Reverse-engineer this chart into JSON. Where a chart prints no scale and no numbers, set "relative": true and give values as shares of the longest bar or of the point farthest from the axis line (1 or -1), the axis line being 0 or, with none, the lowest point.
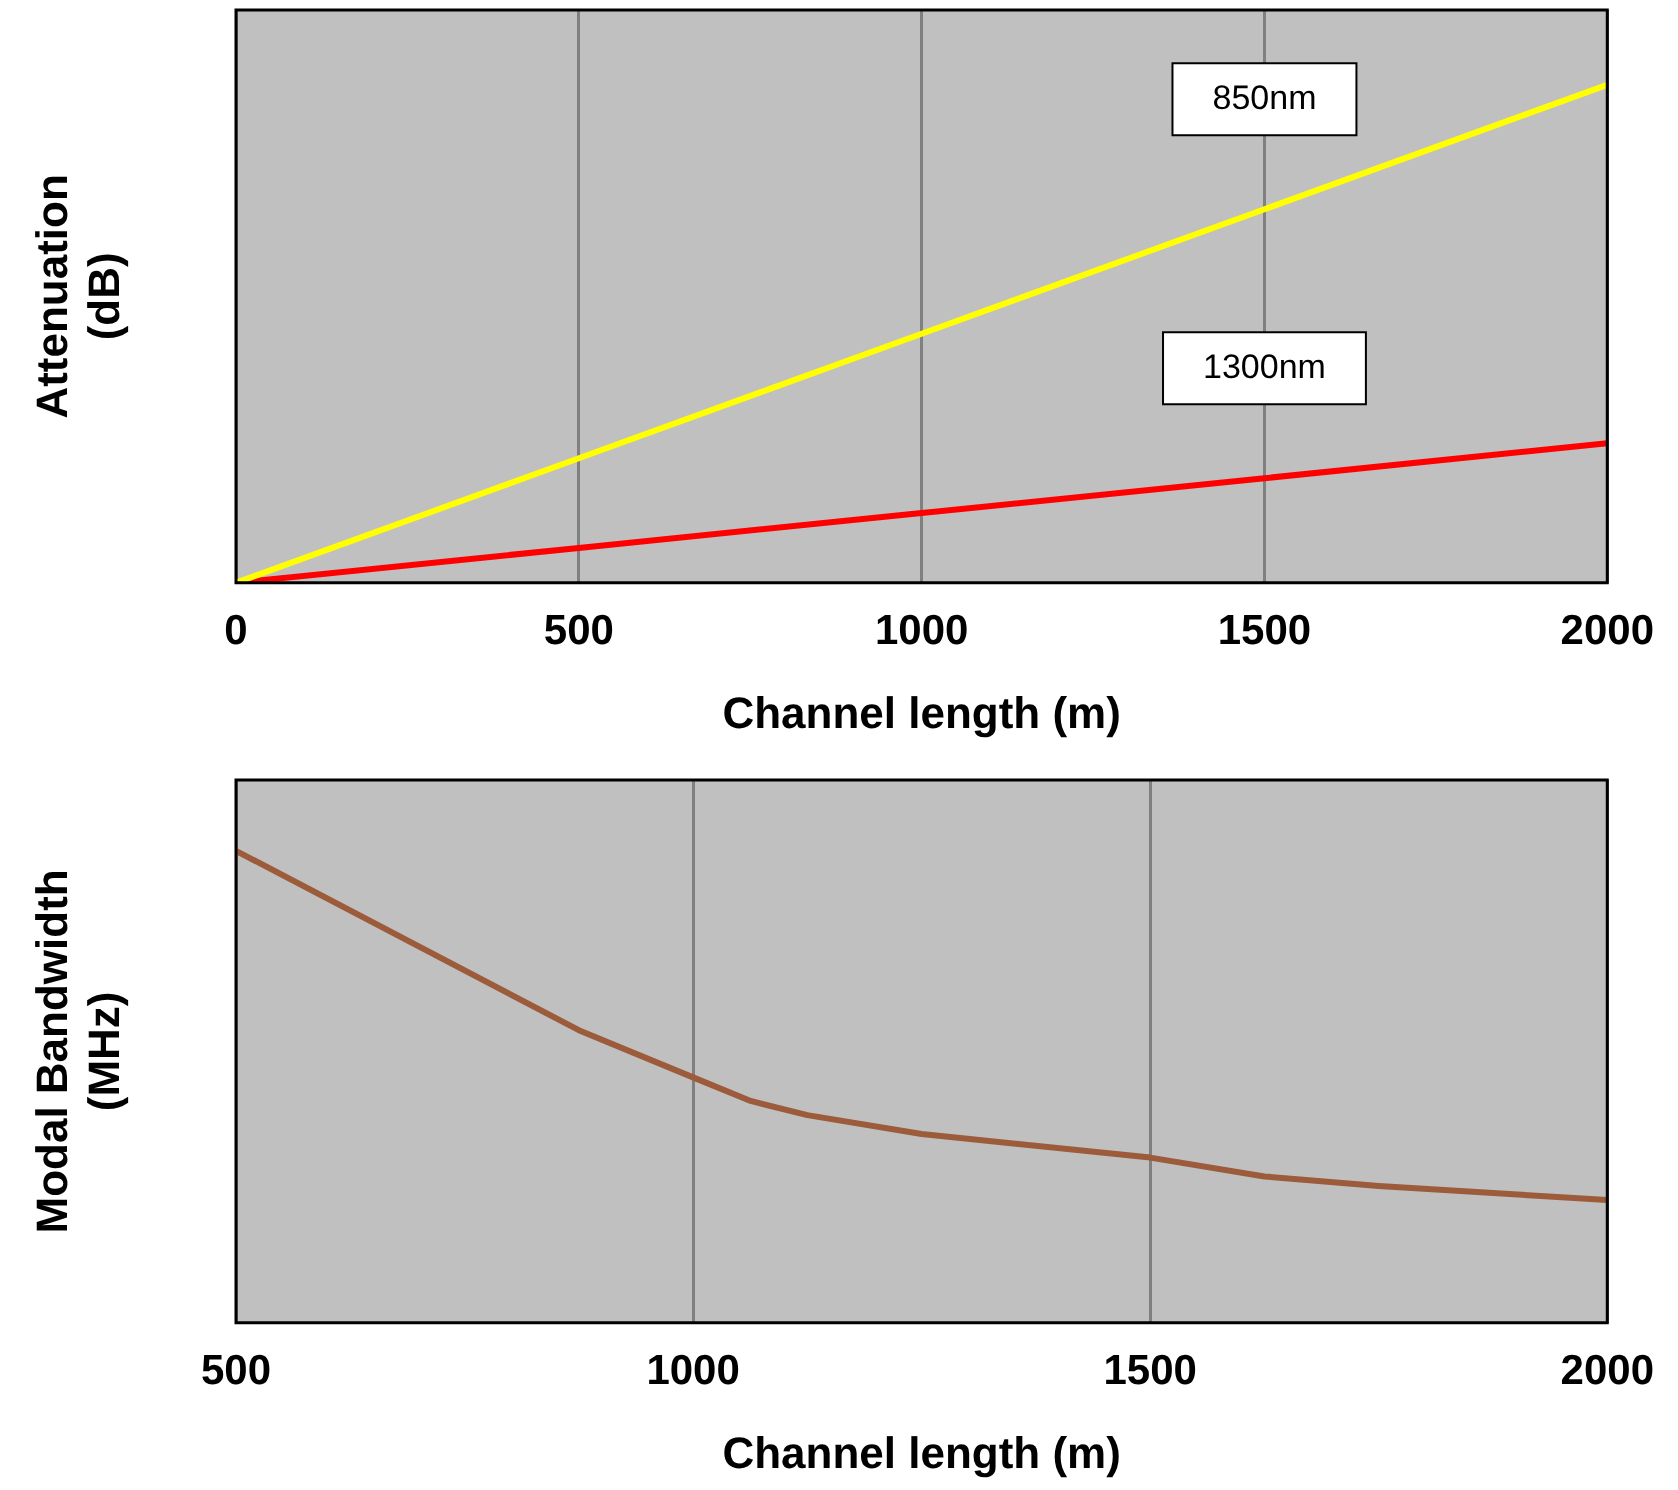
{
  "chart_data": [
    {
      "type": "line",
      "relative": true,
      "xlabel": "Channel length (m)",
      "ylabel": "Attenuation (dB)",
      "x": [
        0,
        500,
        1000,
        1500,
        2000
      ],
      "xlim": [
        0,
        2000
      ],
      "xticks": [
        0,
        500,
        1000,
        1500,
        2000
      ],
      "grid": "x",
      "legend": false,
      "marker": "none",
      "series": [
        {
          "name": "850nm",
          "color": "#ffff00",
          "values": [
            0,
            0.25,
            0.5,
            0.75,
            1
          ]
        },
        {
          "name": "1300nm",
          "color": "#ff0000",
          "values": [
            0,
            0.07,
            0.14,
            0.21,
            0.28
          ]
        }
      ]
    },
    {
      "type": "line",
      "relative": true,
      "xlabel": "Channel length (m)",
      "ylabel": "Modal Bandwidth (MHz)",
      "x": [
        500,
        875,
        1000,
        1063,
        1125,
        1250,
        1500,
        1625,
        1750,
        2000
      ],
      "xlim": [
        500,
        2000
      ],
      "xticks": [
        500,
        1000,
        1500,
        2000
      ],
      "grid": "x",
      "legend": false,
      "marker": "none",
      "series": [
        {
          "color": "#9c5b3a",
          "values": [
            1,
            0.62,
            0.52,
            0.47,
            0.44,
            0.4,
            0.35,
            0.31,
            0.29,
            0.26
          ]
        }
      ]
    }
  ]
}
